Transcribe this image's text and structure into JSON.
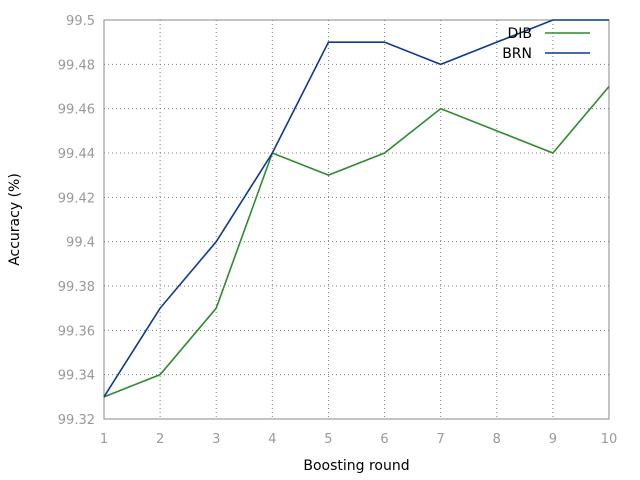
{
  "chart_data": {
    "type": "line",
    "xlabel": "Boosting round",
    "ylabel": "Accuracy (%)",
    "x": [
      1,
      2,
      3,
      4,
      5,
      6,
      7,
      8,
      9,
      10
    ],
    "xlim": [
      1,
      10
    ],
    "ylim": [
      99.32,
      99.5
    ],
    "xticks": [
      "1",
      "2",
      "3",
      "4",
      "5",
      "6",
      "7",
      "8",
      "9",
      "10"
    ],
    "yticks": [
      "99.32",
      "99.34",
      "99.36",
      "99.38",
      "99.4",
      "99.42",
      "99.44",
      "99.46",
      "99.48",
      "99.5"
    ],
    "grid": true,
    "legend_position": "top-right",
    "series": [
      {
        "name": "DIB",
        "color": "#2e8b2e",
        "values": [
          99.33,
          99.34,
          99.37,
          99.44,
          99.43,
          99.44,
          99.46,
          99.45,
          99.44,
          99.47
        ]
      },
      {
        "name": "BRN",
        "color": "#0a3a8c",
        "values": [
          99.33,
          99.37,
          99.4,
          99.44,
          99.49,
          99.49,
          99.48,
          99.49,
          99.5,
          99.5
        ]
      }
    ]
  }
}
